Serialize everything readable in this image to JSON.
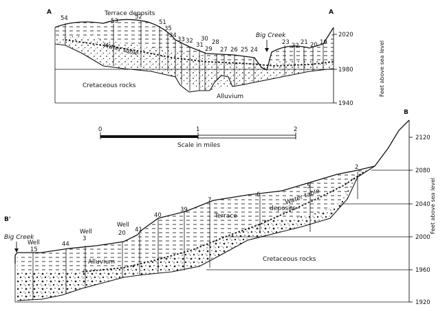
{
  "section_a": {
    "label_left": "A",
    "label_right": "A",
    "terrace_label": "Terrace deposits",
    "water_table_label": "Water table",
    "creek_label": "Big Creek",
    "cretaceous_label": "Cretaceous rocks",
    "alluvium_label": "Alluvium",
    "axis_title": "Feet above sea level",
    "elevation_ticks": [
      "2020",
      "1980",
      "1940"
    ],
    "well_numbers": [
      "54",
      "53",
      "52",
      "51",
      "35",
      "34",
      "33",
      "32",
      "31",
      "30",
      "29",
      "28",
      "27",
      "26",
      "25",
      "24",
      "23",
      "22",
      "21",
      "20",
      "19"
    ]
  },
  "scale_bar": {
    "ticks": [
      "0",
      "1",
      "2"
    ],
    "caption": "Scale in miles"
  },
  "section_b": {
    "label_right": "B",
    "label_left": "B'",
    "creek_label": "Big Creek",
    "terrace_label_1": "Terrace",
    "terrace_label_2": "deposits",
    "water_table_label": "Water table",
    "alluvium_label": "Alluvium",
    "cretaceous_label": "Cretaceous rocks",
    "axis_title": "Feet above sea level",
    "elevation_ticks": [
      "2120",
      "2080",
      "2040",
      "2000",
      "1960",
      "1920"
    ],
    "well_word": "Well",
    "well_numbers": [
      "15",
      "44",
      "3",
      "20",
      "41",
      "40",
      "39",
      "7",
      "6",
      "5",
      "2"
    ]
  }
}
